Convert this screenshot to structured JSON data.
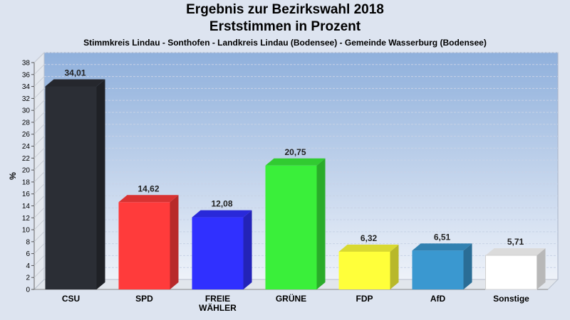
{
  "header": {
    "title": "Ergebnis zur Bezirkswahl 2018",
    "subtitle": "Erststimmen in Prozent",
    "region": "Stimmkreis Lindau - Sonthofen - Landkreis Lindau (Bodensee) - Gemeinde Wasserburg (Bodensee)"
  },
  "chart_data": {
    "type": "bar",
    "title": "Ergebnis zur Bezirkswahl 2018",
    "subtitle": "Erststimmen in Prozent",
    "ylabel": "%",
    "xlabel": "",
    "ylim": [
      0,
      38
    ],
    "yticks": [
      0,
      2,
      4,
      6,
      8,
      10,
      12,
      14,
      16,
      18,
      20,
      22,
      24,
      26,
      28,
      30,
      32,
      34,
      36,
      38
    ],
    "grid": true,
    "categories": [
      "CSU",
      "SPD",
      "FREIE\nWÄHLER",
      "GRÜNE",
      "FDP",
      "AfD",
      "Sonstige"
    ],
    "values": [
      34.01,
      14.62,
      12.08,
      20.75,
      6.32,
      6.51,
      5.71
    ],
    "value_labels": [
      "34,01",
      "14,62",
      "12,08",
      "20,75",
      "6,32",
      "6,51",
      "5,71"
    ],
    "colors": [
      "#2b2e35",
      "#ff3b3b",
      "#3030ff",
      "#3aef3a",
      "#ffff3a",
      "#3a98d0",
      "#ffffff"
    ]
  }
}
